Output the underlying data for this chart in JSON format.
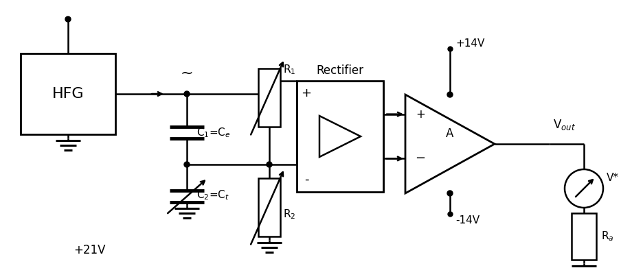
{
  "bg_color": "#ffffff",
  "line_color": "#000000",
  "fig_width": 9.36,
  "fig_height": 3.91,
  "dpi": 100,
  "labels": {
    "plus21v": "+21V",
    "hfg": "HFG",
    "tilde": "~",
    "C1Ce": "C$_1$=C$_e$",
    "C2Ct": "C$_2$=C$_t$",
    "R1": "R$_1$",
    "R2": "R$_2$",
    "rectifier": "Rectifier",
    "plus14v": "+14V",
    "minus14v": "-14V",
    "A": "A",
    "Vout": "V$_{out}$",
    "Vstar": "V*",
    "Ra": "R$_a$"
  }
}
